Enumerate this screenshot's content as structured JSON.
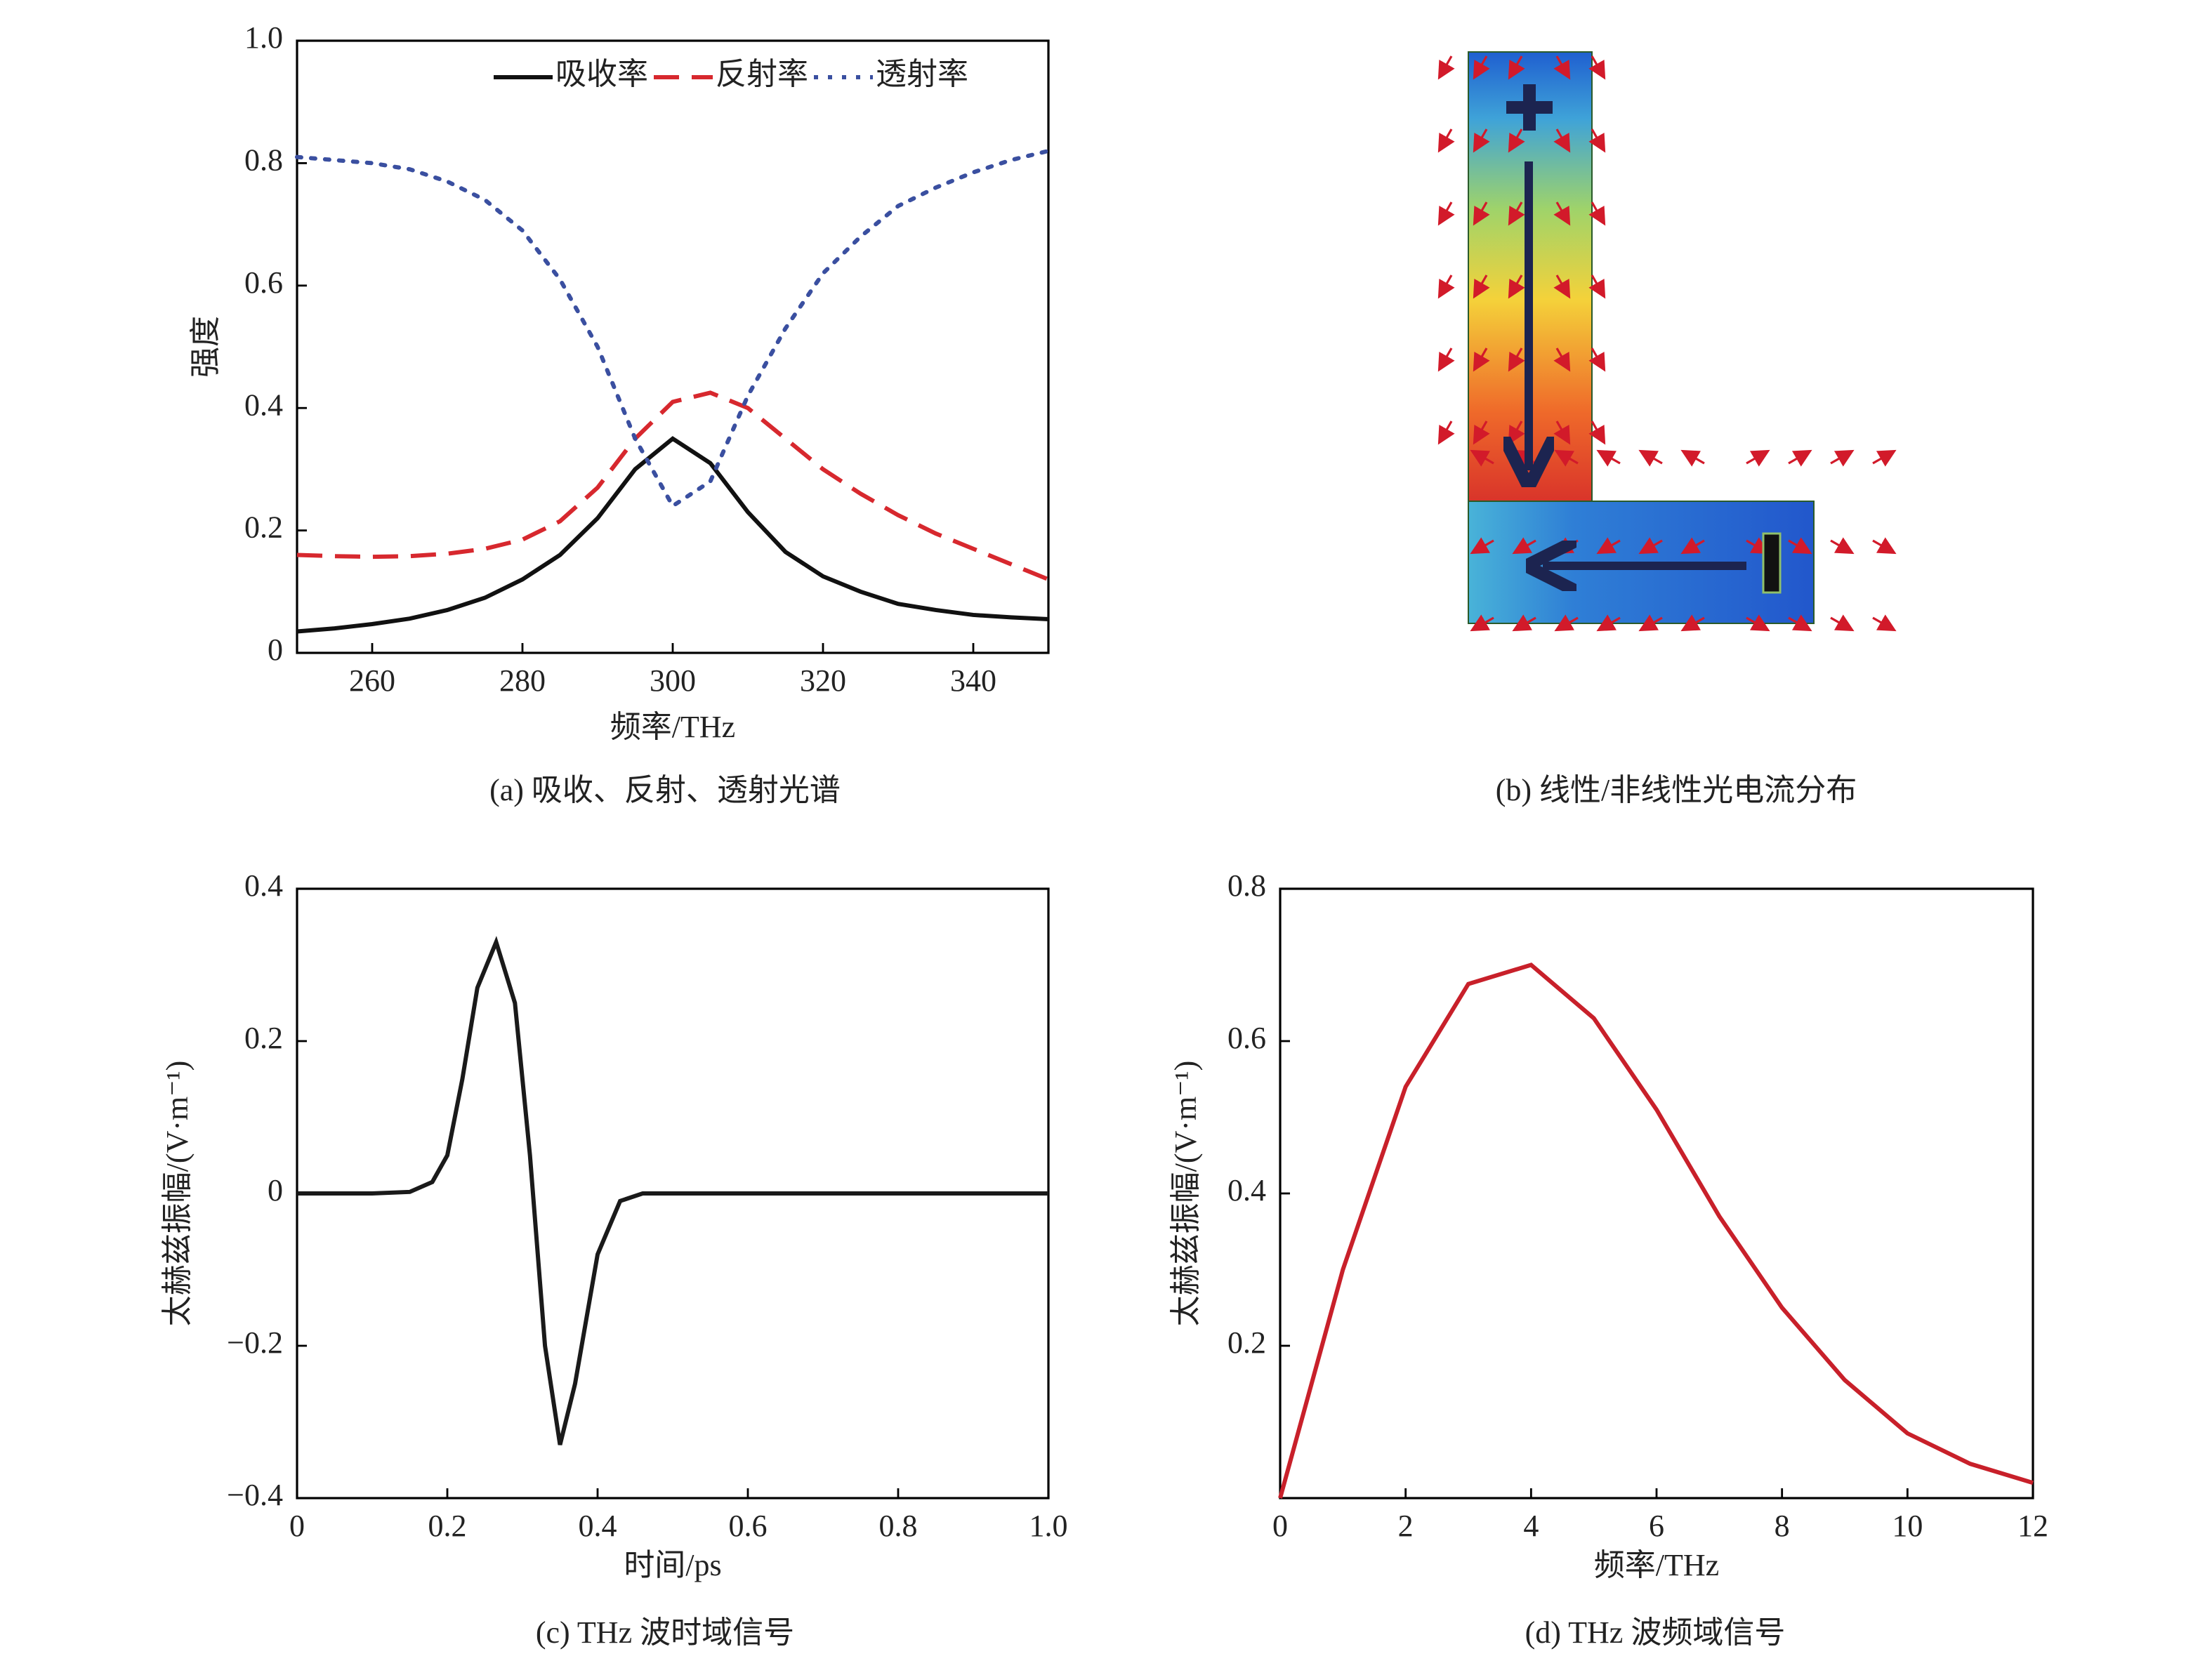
{
  "chart_data": [
    {
      "type": "line",
      "caption": "(a) 吸收、反射、透射光谱",
      "x_label": "频率/THz",
      "y_label": "强度",
      "x": [
        250,
        255,
        260,
        265,
        270,
        275,
        280,
        285,
        290,
        295,
        300,
        305,
        310,
        315,
        320,
        325,
        330,
        335,
        340,
        345,
        350
      ],
      "series": [
        {
          "name": "吸收率",
          "color": "#111111",
          "style": "solid",
          "values": [
            0.035,
            0.04,
            0.047,
            0.056,
            0.07,
            0.09,
            0.12,
            0.16,
            0.22,
            0.3,
            0.35,
            0.31,
            0.23,
            0.165,
            0.125,
            0.1,
            0.08,
            0.07,
            0.062,
            0.058,
            0.055
          ]
        },
        {
          "name": "反射率",
          "color": "#d7282e",
          "style": "dashed",
          "values": [
            0.16,
            0.158,
            0.157,
            0.158,
            0.162,
            0.17,
            0.185,
            0.215,
            0.27,
            0.35,
            0.41,
            0.425,
            0.4,
            0.35,
            0.3,
            0.26,
            0.225,
            0.195,
            0.17,
            0.145,
            0.12
          ]
        },
        {
          "name": "透射率",
          "color": "#3a4fa0",
          "style": "dotted",
          "values": [
            0.81,
            0.805,
            0.8,
            0.79,
            0.77,
            0.74,
            0.69,
            0.61,
            0.5,
            0.35,
            0.24,
            0.28,
            0.42,
            0.53,
            0.62,
            0.68,
            0.73,
            0.76,
            0.785,
            0.805,
            0.82
          ]
        }
      ],
      "xlim": [
        250,
        350
      ],
      "xticks": [
        260,
        280,
        300,
        320,
        340
      ],
      "ylim": [
        0,
        1
      ],
      "yticks": [
        0,
        0.2,
        0.4,
        0.6,
        0.8,
        {
          "value": 1,
          "label": "1.0"
        }
      ],
      "legend": "top-right"
    },
    {
      "type": "line",
      "caption": "(c) THz 波时域信号",
      "x_label": "时间/ps",
      "y_label": "太赫兹振幅/(V·m⁻¹)",
      "x": [
        0,
        0.1,
        0.15,
        0.18,
        0.2,
        0.22,
        0.24,
        0.265,
        0.29,
        0.31,
        0.33,
        0.35,
        0.37,
        0.4,
        0.43,
        0.46,
        0.5,
        1.0
      ],
      "values": [
        0,
        0,
        0.002,
        0.015,
        0.05,
        0.15,
        0.27,
        0.33,
        0.25,
        0.05,
        -0.2,
        -0.33,
        -0.25,
        -0.08,
        -0.01,
        0,
        0,
        0
      ],
      "color": "#1a1a1a",
      "xlim": [
        0,
        1
      ],
      "xticks": [
        0,
        0.2,
        0.4,
        0.6,
        0.8,
        {
          "value": 1,
          "label": "1.0"
        }
      ],
      "ylim": [
        -0.4,
        0.4
      ],
      "yticks": [
        {
          "value": -0.4,
          "label": "−0.4"
        },
        {
          "value": -0.2,
          "label": "−0.2"
        },
        0,
        0.2,
        0.4
      ]
    },
    {
      "type": "line",
      "caption": "(d) THz 波频域信号",
      "x_label": "频率/THz",
      "y_label": "太赫兹振幅/(V·m⁻¹)",
      "x": [
        0,
        1,
        2,
        3,
        4,
        5,
        6,
        7,
        8,
        9,
        10,
        11,
        12
      ],
      "values": [
        0,
        0.3,
        0.54,
        0.675,
        0.7,
        0.63,
        0.51,
        0.37,
        0.25,
        0.155,
        0.085,
        0.045,
        0.02
      ],
      "color": "#c8202a",
      "xlim": [
        0,
        12
      ],
      "xticks": [
        0,
        2,
        4,
        6,
        8,
        10,
        12
      ],
      "ylim": [
        0,
        0.8
      ],
      "yticks": [
        0.2,
        0.4,
        0.6,
        0.8
      ]
    }
  ],
  "image_panel": {
    "caption": "(b) 线性/非线性光电流分布"
  }
}
